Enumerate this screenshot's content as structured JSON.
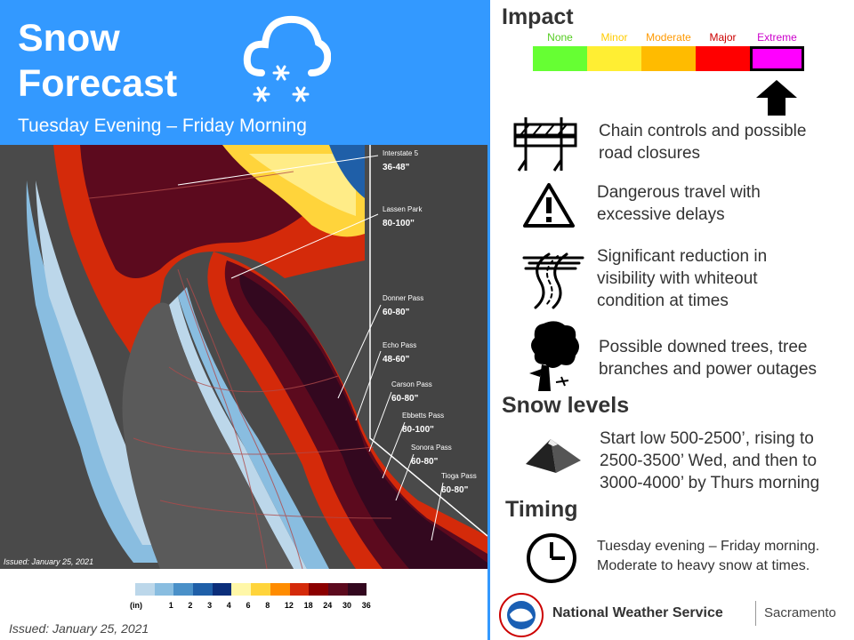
{
  "header": {
    "title_line1": "Snow",
    "title_line2": "Forecast",
    "subtitle": "Tuesday Evening – Friday Morning",
    "icon": "cloud-snow-icon"
  },
  "map": {
    "issued_note": "Issued: January 25, 2021",
    "callouts": [
      {
        "name": "Interstate 5",
        "amount": "36-48\""
      },
      {
        "name": "Lassen Park",
        "amount": "80-100\""
      },
      {
        "name": "Donner Pass",
        "amount": "60-80\""
      },
      {
        "name": "Echo Pass",
        "amount": "48-60\""
      },
      {
        "name": "Carson Pass",
        "amount": "60-80\""
      },
      {
        "name": "Ebbetts Pass",
        "amount": "80-100\""
      },
      {
        "name": "Sonora Pass",
        "amount": "60-80\""
      },
      {
        "name": "Tioga Pass",
        "amount": "60-80\""
      }
    ]
  },
  "legend": {
    "unit": "(in)",
    "labels": [
      "1",
      "2",
      "3",
      "4",
      "6",
      "8",
      "12",
      "18",
      "24",
      "30",
      "36"
    ],
    "colors": [
      "#bcd7ea",
      "#89bde0",
      "#4a90c8",
      "#1f5fa8",
      "#0b2e7a",
      "#fff7a8",
      "#ffd43b",
      "#ff8c00",
      "#d42a0a",
      "#8b0000",
      "#5c0a1e",
      "#33081f"
    ]
  },
  "issued": "Issued: January 25, 2021",
  "impact": {
    "heading": "Impact",
    "levels": [
      {
        "label": "None",
        "color": "#66ff33",
        "text_color": "#55cc22"
      },
      {
        "label": "Minor",
        "color": "#ffee33",
        "text_color": "#ffcc00"
      },
      {
        "label": "Moderate",
        "color": "#ffbb00",
        "text_color": "#ff9900"
      },
      {
        "label": "Major",
        "color": "#ff0000",
        "text_color": "#cc0000"
      },
      {
        "label": "Extreme",
        "color": "#ff00ff",
        "text_color": "#cc00cc"
      }
    ],
    "selected": "Extreme"
  },
  "impacts": [
    {
      "icon": "road-barrier-icon",
      "text_line1": "Chain controls and possible",
      "text_line2": "road closures"
    },
    {
      "icon": "warning-triangle-icon",
      "text_line1": "Dangerous travel with",
      "text_line2": "excessive delays"
    },
    {
      "icon": "whiteout-road-icon",
      "text_line1": "Significant reduction in",
      "text_line2": "visibility with whiteout",
      "text_line3": "condition at times"
    },
    {
      "icon": "downed-tree-icon",
      "text_line1": "Possible downed trees, tree",
      "text_line2": "branches and power outages"
    }
  ],
  "snow_levels": {
    "heading": "Snow levels",
    "icon": "mountain-icon",
    "line1": "Start low 500-2500’, rising to",
    "line2": "2500-3500’ Wed, and then to",
    "line3": "3000-4000’ by Thurs morning"
  },
  "timing": {
    "heading": "Timing",
    "icon": "clock-icon",
    "line1": "Tuesday evening – Friday morning.",
    "line2": "Moderate to heavy snow at times."
  },
  "footer": {
    "agency": "National Weather Service",
    "office": "Sacramento",
    "logo": "nws-logo"
  }
}
